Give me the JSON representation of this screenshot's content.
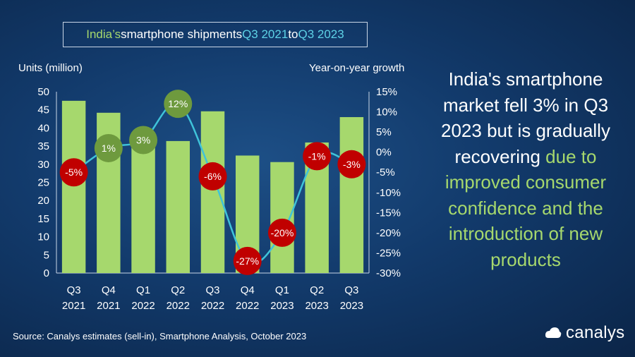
{
  "title": {
    "part1": "India’s",
    "part2": " smartphone shipments ",
    "part3": "Q3 2021",
    "part4": " to ",
    "part5": "Q3 2023"
  },
  "axis_titles": {
    "left": "Units (million)",
    "right": "Year-on-year growth"
  },
  "side_text": {
    "white": "India's smartphone market fell 3% in Q3 2023 but is gradually recovering",
    "green": " due to improved consumer confidence and the introduction of new products"
  },
  "source": "Source: Canalys estimates (sell-in), Smartphone Analysis, October 2023",
  "brand": {
    "name": "canalys",
    "icon": "canalys-logo-icon"
  },
  "colors": {
    "bar": "#a6d86d",
    "line": "#3fc3d9",
    "positive_marker": "#6e9a3e",
    "negative_marker": "#c00000"
  },
  "chart_data": {
    "type": "bar",
    "categories": [
      [
        "Q3",
        "2021"
      ],
      [
        "Q4",
        "2021"
      ],
      [
        "Q1",
        "2022"
      ],
      [
        "Q2",
        "2022"
      ],
      [
        "Q3",
        "2022"
      ],
      [
        "Q4",
        "2022"
      ],
      [
        "Q1",
        "2023"
      ],
      [
        "Q2",
        "2023"
      ],
      [
        "Q3",
        "2023"
      ]
    ],
    "ylabel": "Units (million)",
    "ylim": [
      0,
      50
    ],
    "yticks": [
      0,
      5,
      10,
      15,
      20,
      25,
      30,
      35,
      40,
      45,
      50
    ],
    "y2label": "Year-on-year growth",
    "y2lim": [
      -30,
      15
    ],
    "y2ticks": [
      "15%",
      "10%",
      "5%",
      "0%",
      "-5%",
      "-10%",
      "-15%",
      "-20%",
      "-25%",
      "-30%"
    ],
    "series": [
      {
        "type": "bar",
        "axis": "left",
        "values": [
          47.5,
          44.2,
          35.0,
          36.4,
          44.6,
          32.4,
          30.6,
          36.0,
          43.0
        ]
      },
      {
        "type": "line",
        "axis": "right",
        "values": [
          -5,
          1,
          3,
          12,
          -6,
          -27,
          -20,
          -1,
          -3
        ],
        "labels": [
          "-5%",
          "1%",
          "3%",
          "12%",
          "-6%",
          "-27%",
          "-20%",
          "-1%",
          "-3%"
        ]
      }
    ],
    "grid": false,
    "legend": "none"
  }
}
